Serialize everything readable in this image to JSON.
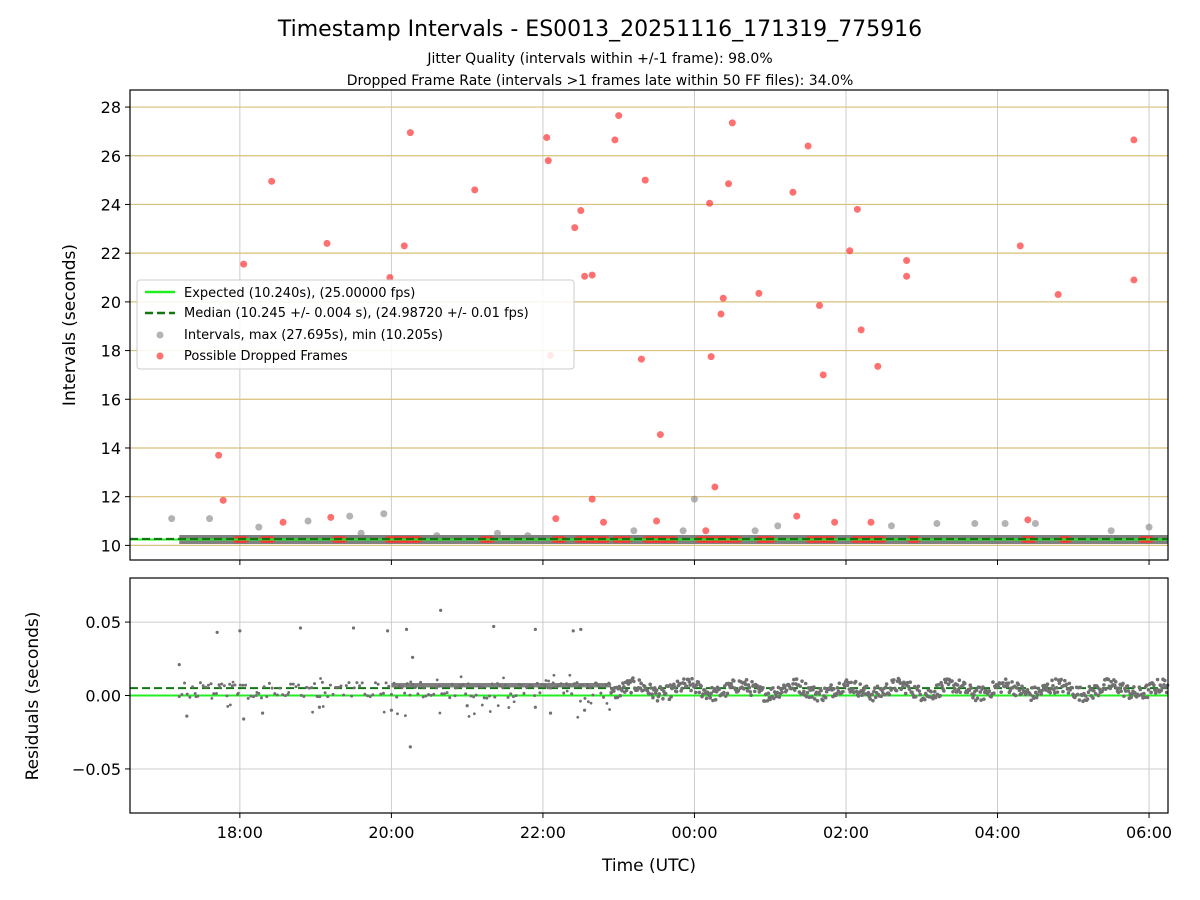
{
  "chart_data": [
    {
      "type": "scatter",
      "panel": "intervals",
      "title": "Timestamp Intervals - ES0013_20251116_171319_775916",
      "subtitle_lines": [
        "Jitter Quality (intervals within +/-1 frame): 98.0%",
        "Dropped Frame Rate (intervals >1 frames late within 50 FF files): 34.0%"
      ],
      "xlabel": "",
      "ylabel": "Intervals (seconds)",
      "xlim_hours": [
        16.55,
        30.25
      ],
      "ylim": [
        9.4,
        28.7
      ],
      "yticks": [
        10,
        12,
        14,
        16,
        18,
        20,
        22,
        24,
        26,
        28
      ],
      "x_tick_labels": [
        {
          "h": 18,
          "label": "18:00"
        },
        {
          "h": 20,
          "label": "20:00"
        },
        {
          "h": 22,
          "label": "22:00"
        },
        {
          "h": 24,
          "label": "00:00"
        },
        {
          "h": 26,
          "label": "02:00"
        },
        {
          "h": 28,
          "label": "04:00"
        },
        {
          "h": 30,
          "label": "06:00"
        }
      ],
      "grid": true,
      "legend_placement": "center-left",
      "lines": {
        "expected": {
          "name": "Expected (10.240s), (25.00000 fps)",
          "value": 10.24,
          "color": "#22ee22"
        },
        "median": {
          "name": "Median (10.245 +/- 0.004 s), (24.98720 +/- 0.01 fps)",
          "value": 10.245,
          "color": "#117711"
        }
      },
      "series": [
        {
          "name": "Intervals, max (27.695s), min (10.205s)",
          "color": "#808080",
          "base_band": {
            "x_start": 17.2,
            "x_end": 30.25,
            "y": 10.24
          },
          "points": [
            [
              17.1,
              11.1
            ],
            [
              17.6,
              11.1
            ],
            [
              18.25,
              10.75
            ],
            [
              18.9,
              11.0
            ],
            [
              19.45,
              11.2
            ],
            [
              19.6,
              10.5
            ],
            [
              19.9,
              11.3
            ],
            [
              20.6,
              10.4
            ],
            [
              21.4,
              10.5
            ],
            [
              21.8,
              10.4
            ],
            [
              23.2,
              10.6
            ],
            [
              23.85,
              10.6
            ],
            [
              24.0,
              11.9
            ],
            [
              24.8,
              10.6
            ],
            [
              25.1,
              10.8
            ],
            [
              26.6,
              10.8
            ],
            [
              27.2,
              10.9
            ],
            [
              27.7,
              10.9
            ],
            [
              28.1,
              10.9
            ],
            [
              28.5,
              10.9
            ],
            [
              29.5,
              10.6
            ],
            [
              30.0,
              10.75
            ]
          ]
        },
        {
          "name": "Possible Dropped Frames",
          "color": "#ff3333",
          "dense_clusters": [
            [
              17.95,
              18.1
            ],
            [
              18.3,
              18.45
            ],
            [
              19.25,
              19.4
            ],
            [
              19.95,
              20.4
            ],
            [
              21.2,
              21.35
            ],
            [
              22.15,
              22.3
            ],
            [
              22.45,
              22.85
            ],
            [
              22.95,
              23.15
            ],
            [
              23.35,
              23.75
            ],
            [
              24.05,
              24.6
            ],
            [
              24.85,
              25.05
            ],
            [
              25.5,
              25.85
            ],
            [
              26.1,
              26.5
            ],
            [
              26.85,
              26.95
            ],
            [
              28.35,
              28.5
            ],
            [
              28.85,
              28.95
            ],
            [
              29.9,
              30.05
            ]
          ],
          "points": [
            [
              17.72,
              13.7
            ],
            [
              17.78,
              11.85
            ],
            [
              18.05,
              21.55
            ],
            [
              18.42,
              24.95
            ],
            [
              18.57,
              10.95
            ],
            [
              19.15,
              22.4
            ],
            [
              19.2,
              11.15
            ],
            [
              19.98,
              21.0
            ],
            [
              20.17,
              22.3
            ],
            [
              20.25,
              26.95
            ],
            [
              21.1,
              24.6
            ],
            [
              22.05,
              26.75
            ],
            [
              22.07,
              25.8
            ],
            [
              22.1,
              17.8
            ],
            [
              22.17,
              11.1
            ],
            [
              22.42,
              23.05
            ],
            [
              22.5,
              23.75
            ],
            [
              22.55,
              21.05
            ],
            [
              22.65,
              21.1
            ],
            [
              22.65,
              11.9
            ],
            [
              22.8,
              10.95
            ],
            [
              22.95,
              26.65
            ],
            [
              23.0,
              27.65
            ],
            [
              23.3,
              17.65
            ],
            [
              23.35,
              25.0
            ],
            [
              23.5,
              11.0
            ],
            [
              23.55,
              14.55
            ],
            [
              24.15,
              10.6
            ],
            [
              24.2,
              24.05
            ],
            [
              24.22,
              17.75
            ],
            [
              24.27,
              12.4
            ],
            [
              24.35,
              19.5
            ],
            [
              24.38,
              20.15
            ],
            [
              24.45,
              24.85
            ],
            [
              24.5,
              27.35
            ],
            [
              24.85,
              20.35
            ],
            [
              25.3,
              24.5
            ],
            [
              25.35,
              11.2
            ],
            [
              25.5,
              26.4
            ],
            [
              25.65,
              19.85
            ],
            [
              25.7,
              17.0
            ],
            [
              25.85,
              10.95
            ],
            [
              26.05,
              22.1
            ],
            [
              26.15,
              23.8
            ],
            [
              26.2,
              18.85
            ],
            [
              26.33,
              10.95
            ],
            [
              26.42,
              17.35
            ],
            [
              26.8,
              21.7
            ],
            [
              26.8,
              21.05
            ],
            [
              28.3,
              22.3
            ],
            [
              28.4,
              11.05
            ],
            [
              28.8,
              20.3
            ],
            [
              29.8,
              26.65
            ],
            [
              29.8,
              20.9
            ]
          ]
        }
      ]
    },
    {
      "type": "scatter",
      "panel": "residuals",
      "xlabel": "Time (UTC)",
      "ylabel": "Residuals (seconds)",
      "xlim_hours": [
        16.55,
        30.25
      ],
      "ylim": [
        -0.08,
        0.08
      ],
      "yticks": [
        {
          "v": 0.05,
          "label": "0.05"
        },
        {
          "v": 0.0,
          "label": "0.00"
        },
        {
          "v": -0.05,
          "label": "−0.05"
        }
      ],
      "grid": true,
      "lines": {
        "expected": {
          "value": 0.0,
          "color": "#22ee22"
        },
        "median": {
          "value": 0.005,
          "color": "#117711"
        }
      },
      "series": [
        {
          "name": "Residuals",
          "color": "#707070",
          "outliers": [
            [
              17.2,
              0.021
            ],
            [
              17.7,
              0.043
            ],
            [
              18.0,
              0.044
            ],
            [
              18.3,
              -0.012
            ],
            [
              18.8,
              0.046
            ],
            [
              19.05,
              -0.008
            ],
            [
              19.5,
              0.046
            ],
            [
              19.95,
              0.044
            ],
            [
              20.0,
              -0.01
            ],
            [
              20.2,
              0.045
            ],
            [
              20.28,
              0.026
            ],
            [
              20.25,
              -0.035
            ],
            [
              20.65,
              0.058
            ],
            [
              21.0,
              -0.007
            ],
            [
              21.35,
              0.047
            ],
            [
              21.9,
              -0.008
            ],
            [
              21.9,
              0.045
            ],
            [
              22.4,
              0.044
            ],
            [
              22.5,
              0.045
            ],
            [
              22.1,
              -0.012
            ],
            [
              22.55,
              -0.01
            ],
            [
              17.3,
              -0.014
            ],
            [
              18.05,
              -0.016
            ]
          ]
        }
      ]
    }
  ]
}
